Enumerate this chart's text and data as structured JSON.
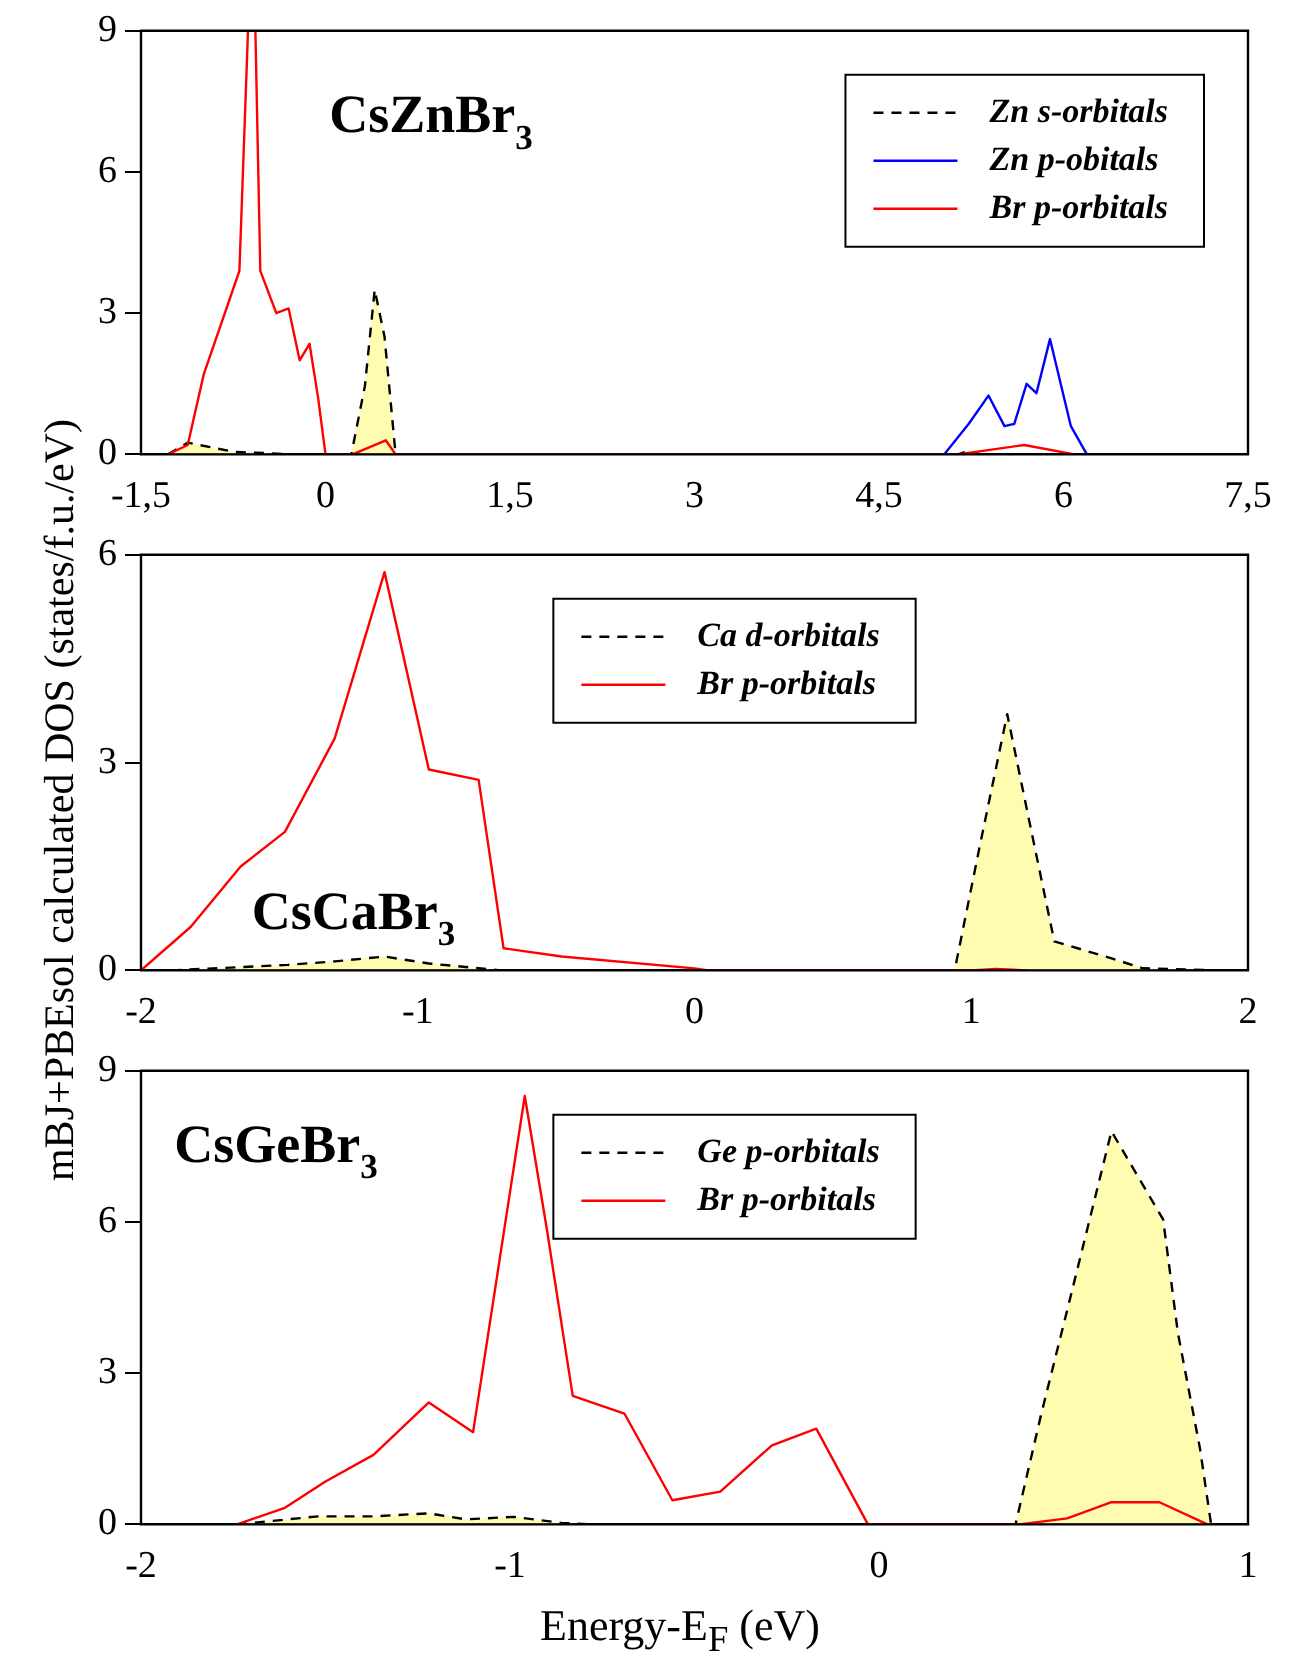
{
  "chart_data": [
    {
      "type": "line",
      "ylabel": "mBJ+PBEsol calculated DOS (states/f.u./eV)",
      "annotations": [
        "CsZnBr$_{3}$"
      ],
      "legend": "top right",
      "xlim": [
        -1.5,
        7.5
      ],
      "ylim": [
        0,
        9
      ],
      "xticks": [
        {
          "value": -1.5,
          "label": "-1,5"
        },
        0,
        {
          "value": 1.5,
          "label": "1,5"
        },
        3,
        {
          "value": 4.5,
          "label": "4,5"
        },
        6,
        {
          "value": 7.5,
          "label": "7,5"
        }
      ],
      "yticks": [
        0,
        3,
        6,
        9
      ],
      "series": [
        {
          "name": "Zn s-orbitals",
          "type": "area",
          "line_style": "dashed",
          "color": "#000000",
          "x": [
            -1.28,
            -1.12,
            -0.93,
            -0.73,
            -0.48,
            -0.3,
            0.21,
            0.32,
            0.4,
            0.48,
            0.57,
            5.14,
            5.23,
            5.33
          ],
          "values": [
            0,
            0.25,
            0.15,
            0.05,
            0.03,
            0,
            0,
            1.45,
            3.5,
            2.5,
            0,
            0,
            0.07,
            0
          ]
        },
        {
          "name": "Zn p-obitals",
          "color": "#0000ff",
          "x": [
            5.03,
            5.23,
            5.39,
            5.52,
            5.6,
            5.7,
            5.78,
            5.89,
            6.06,
            6.19
          ],
          "values": [
            0,
            0.65,
            1.25,
            0.6,
            0.65,
            1.5,
            1.3,
            2.45,
            0.6,
            0
          ]
        },
        {
          "name": "Br p-orbitals",
          "color": "#ff0000",
          "x": [
            -1.28,
            -1.12,
            -0.99,
            -0.7,
            -0.63,
            -0.57,
            -0.53,
            -0.4,
            -0.3,
            -0.21,
            -0.13,
            -0.06,
            0,
            0.22,
            0.49,
            0.57,
            5.14,
            5.68,
            6.09
          ],
          "values": [
            0,
            0.2,
            1.7,
            3.9,
            9,
            9,
            3.9,
            3.0,
            3.1,
            2.0,
            2.35,
            1.2,
            0,
            0,
            0.3,
            0,
            0,
            0.2,
            0
          ]
        }
      ]
    },
    {
      "type": "line",
      "annotations": [
        "CsCaBr$_{3}$"
      ],
      "legend": "top",
      "xlim": [
        -2,
        2
      ],
      "ylim": [
        0,
        6
      ],
      "xticks": [
        -2,
        -1,
        0,
        1,
        2
      ],
      "yticks": [
        0,
        3,
        6
      ],
      "series": [
        {
          "name": "Ca d-orbitals",
          "type": "area",
          "line_style": "dashed",
          "color": "#000000",
          "x": [
            -1.89,
            -1.47,
            -1.3,
            -1.12,
            -0.96,
            -0.7,
            0.94,
            1.03,
            1.13,
            1.21,
            1.3,
            1.51,
            1.62,
            1.91
          ],
          "values": [
            0,
            0.08,
            0.13,
            0.2,
            0.1,
            0,
            0,
            1.78,
            3.7,
            2.15,
            0.42,
            0.17,
            0.03,
            0
          ]
        },
        {
          "name": "Br p-orbitals",
          "color": "#ff0000",
          "x": [
            -2,
            -1.82,
            -1.64,
            -1.48,
            -1.3,
            -1.12,
            -0.96,
            -0.78,
            -0.69,
            -0.48,
            0,
            0.05,
            1.0,
            1.09,
            1.2
          ],
          "values": [
            0,
            0.63,
            1.5,
            2.0,
            3.35,
            5.75,
            2.9,
            2.75,
            0.32,
            0.2,
            0.03,
            0,
            0,
            0.02,
            0
          ]
        }
      ]
    },
    {
      "type": "line",
      "xlabel": "Energy-E$_{F}$ (eV)",
      "annotations": [
        "CsGeBr$_{3}$"
      ],
      "legend": "top",
      "xlim": [
        -2,
        1
      ],
      "ylim": [
        0,
        9
      ],
      "xticks": [
        -2,
        -1,
        0,
        1
      ],
      "yticks": [
        0,
        3,
        6,
        9
      ],
      "series": [
        {
          "name": "Ge p-orbitals",
          "type": "area",
          "line_style": "dashed",
          "color": "#000000",
          "x": [
            -1.74,
            -1.52,
            -1.37,
            -1.22,
            -1.12,
            -0.99,
            -0.86,
            -0.78,
            0.37,
            0.44,
            0.51,
            0.63,
            0.77,
            0.81,
            0.87,
            0.9
          ],
          "values": [
            0,
            0.16,
            0.16,
            0.22,
            0.1,
            0.15,
            0.03,
            0,
            0,
            2.2,
            4.25,
            7.8,
            6.05,
            3.8,
            1.5,
            0
          ]
        },
        {
          "name": "Br p-orbitals",
          "color": "#ff0000",
          "x": [
            -1.74,
            -1.61,
            -1.5,
            -1.37,
            -1.22,
            -1.1,
            -0.96,
            -0.9,
            -0.83,
            -0.69,
            -0.56,
            -0.43,
            -0.29,
            -0.17,
            -0.03,
            0.38,
            0.51,
            0.63,
            0.76,
            0.89
          ],
          "values": [
            0,
            0.33,
            0.85,
            1.38,
            2.42,
            1.83,
            8.5,
            5.85,
            2.55,
            2.2,
            0.48,
            0.65,
            1.57,
            1.9,
            0,
            0,
            0.12,
            0.44,
            0.44,
            0
          ]
        }
      ]
    }
  ]
}
